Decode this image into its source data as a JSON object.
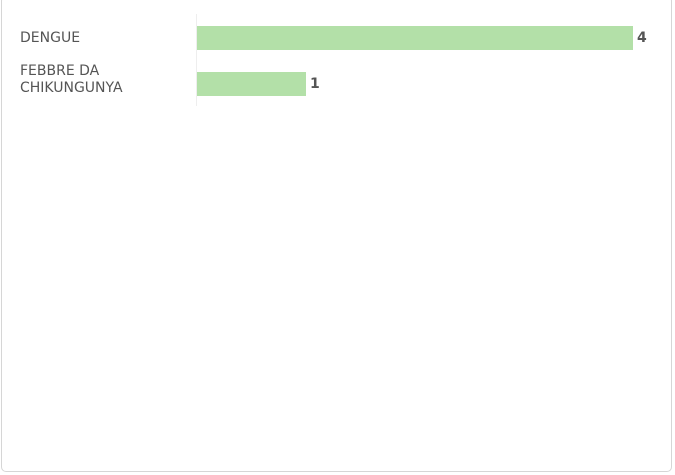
{
  "chart_data": {
    "type": "bar",
    "orientation": "horizontal",
    "categories": [
      "DENGUE",
      "FEBBRE DA CHIKUNGUNYA"
    ],
    "values": [
      4,
      1
    ],
    "color": "#b3e0a8"
  }
}
